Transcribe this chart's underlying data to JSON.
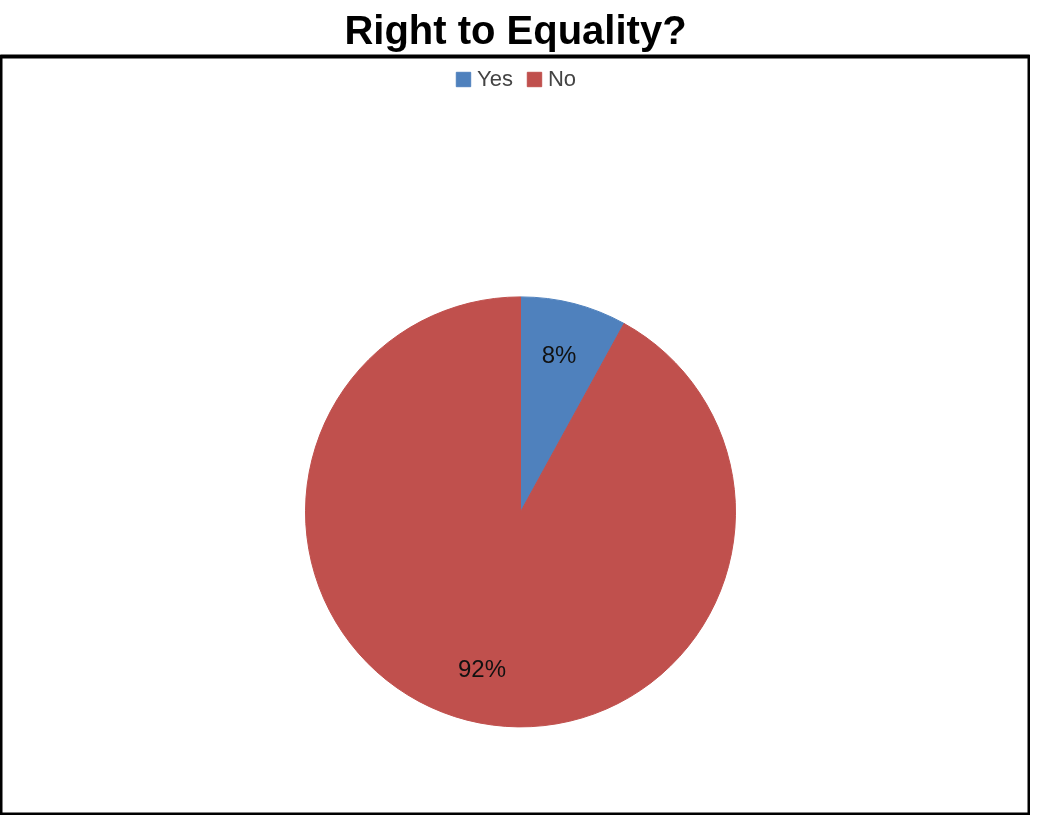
{
  "chart_data": {
    "type": "pie",
    "title": "Right to Equality?",
    "categories": [
      "Yes",
      "No"
    ],
    "values": [
      8,
      92
    ],
    "colors": [
      "#4f81bd",
      "#c0504d"
    ],
    "value_labels": [
      "8%",
      "92%"
    ],
    "legend": "top"
  }
}
